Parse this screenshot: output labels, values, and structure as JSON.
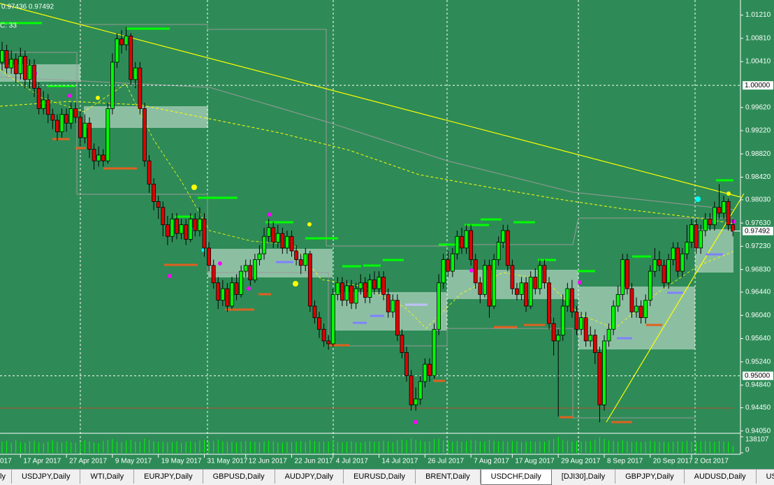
{
  "chart": {
    "type": "candlestick",
    "info": "0.97436 0.97492",
    "indicator_label": "C: 33",
    "ylim": [
      0.9401,
      1.0147
    ],
    "yticks": [
      {
        "value": 1.0121,
        "label": "1.01210"
      },
      {
        "value": 1.0081,
        "label": "1.00810"
      },
      {
        "value": 1.0041,
        "label": "1.00410"
      },
      {
        "value": 0.9962,
        "label": "0.99620"
      },
      {
        "value": 0.9922,
        "label": "0.99220"
      },
      {
        "value": 0.9882,
        "label": "0.98820"
      },
      {
        "value": 0.9842,
        "label": "0.98420"
      },
      {
        "value": 0.9803,
        "label": "0.98030"
      },
      {
        "value": 0.9763,
        "label": "0.97630"
      },
      {
        "value": 0.9723,
        "label": "0.97230"
      },
      {
        "value": 0.9683,
        "label": "0.96830"
      },
      {
        "value": 0.9644,
        "label": "0.96440"
      },
      {
        "value": 0.9604,
        "label": "0.96040"
      },
      {
        "value": 0.9564,
        "label": "0.95640"
      },
      {
        "value": 0.9524,
        "label": "0.95240"
      },
      {
        "value": 0.9484,
        "label": "0.94840"
      },
      {
        "value": 0.9445,
        "label": "0.94450"
      },
      {
        "value": 0.9405,
        "label": "0.94050"
      }
    ],
    "levels": [
      {
        "value": 1,
        "label": "1.00000"
      },
      {
        "value": 0.95,
        "label": "0.95000"
      }
    ],
    "price_label": {
      "value": 0.97492,
      "label": "0.97492"
    },
    "bull_color": "#00ff00",
    "bear_color": "#e00000",
    "candles": {
      "open": [
        1.004,
        1.006,
        1.003,
        1.0045,
        1.002,
        1.005,
        1.001,
        1.0035,
        0.9995,
        0.996,
        0.9975,
        0.995,
        0.994,
        0.992,
        0.995,
        0.9935,
        0.996,
        0.9945,
        0.991,
        0.9935,
        0.989,
        0.987,
        0.988,
        0.987,
        0.996,
        1.004,
        1.008,
        1.007,
        1.0085,
        1.001,
        1.003,
        0.996,
        0.987,
        0.983,
        0.98,
        0.979,
        0.976,
        0.974,
        0.977,
        0.9745,
        0.976,
        0.9735,
        0.977,
        0.975,
        0.977,
        0.972,
        0.969,
        0.966,
        0.963,
        0.965,
        0.962,
        0.966,
        0.964,
        0.968,
        0.969,
        0.9665,
        0.97,
        0.971,
        0.974,
        0.9755,
        0.973,
        0.9745,
        0.972,
        0.974,
        0.9715,
        0.97,
        0.969,
        0.971,
        0.962,
        0.96,
        0.958,
        0.956,
        0.9555,
        0.964,
        0.966,
        0.963,
        0.9655,
        0.9625,
        0.965,
        0.966,
        0.9635,
        0.9665,
        0.965,
        0.967,
        0.964,
        0.961,
        0.963,
        0.957,
        0.954,
        0.95,
        0.945,
        0.946,
        0.949,
        0.952,
        0.95,
        0.958,
        0.966,
        0.97,
        0.968,
        0.971,
        0.974,
        0.972,
        0.975,
        0.97,
        0.966,
        0.964,
        0.969,
        0.962,
        0.97,
        0.973,
        0.975,
        0.969,
        0.965,
        0.964,
        0.966,
        0.962,
        0.967,
        0.965,
        0.969,
        0.966,
        0.959,
        0.956,
        0.957,
        0.962,
        0.965,
        0.961,
        0.958,
        0.96,
        0.956,
        0.957,
        0.954,
        0.945,
        0.956,
        0.958,
        0.962,
        0.964,
        0.97,
        0.965,
        0.961,
        0.962,
        0.96,
        0.963,
        0.968,
        0.97,
        0.969,
        0.966,
        0.97,
        0.972,
        0.968,
        0.971,
        0.973,
        0.976,
        0.972,
        0.975,
        0.977,
        0.976,
        0.979,
        0.978,
        0.98,
        0.976
      ],
      "high": [
        1.0075,
        1.007,
        1.006,
        1.0055,
        1.0065,
        1.006,
        1.0045,
        1.0045,
        1.0005,
        0.999,
        0.9985,
        0.996,
        0.995,
        0.996,
        0.996,
        0.997,
        0.997,
        0.9955,
        0.995,
        0.9945,
        0.99,
        0.9895,
        0.989,
        0.997,
        1.0055,
        1.009,
        1.0095,
        1.01,
        1.009,
        1.004,
        1.004,
        0.997,
        0.988,
        0.984,
        0.981,
        0.98,
        0.9775,
        0.978,
        0.978,
        0.977,
        0.977,
        0.978,
        0.978,
        0.979,
        0.978,
        0.973,
        0.97,
        0.967,
        0.9665,
        0.966,
        0.967,
        0.9675,
        0.969,
        0.97,
        0.97,
        0.971,
        0.9725,
        0.9755,
        0.977,
        0.9765,
        0.976,
        0.9755,
        0.975,
        0.975,
        0.9725,
        0.971,
        0.972,
        0.9715,
        0.963,
        0.961,
        0.959,
        0.957,
        0.965,
        0.967,
        0.967,
        0.9665,
        0.9665,
        0.966,
        0.9675,
        0.967,
        0.9675,
        0.968,
        0.968,
        0.968,
        0.965,
        0.964,
        0.964,
        0.958,
        0.955,
        0.951,
        0.948,
        0.95,
        0.953,
        0.953,
        0.959,
        0.9675,
        0.971,
        0.9715,
        0.972,
        0.975,
        0.9755,
        0.976,
        0.976,
        0.971,
        0.967,
        0.97,
        0.97,
        0.971,
        0.974,
        0.976,
        0.976,
        0.97,
        0.966,
        0.967,
        0.967,
        0.968,
        0.9685,
        0.97,
        0.97,
        0.967,
        0.96,
        0.958,
        0.964,
        0.966,
        0.9665,
        0.962,
        0.961,
        0.961,
        0.9585,
        0.958,
        0.955,
        0.957,
        0.959,
        0.963,
        0.9655,
        0.971,
        0.971,
        0.966,
        0.9635,
        0.963,
        0.964,
        0.969,
        0.972,
        0.9715,
        0.97,
        0.971,
        0.973,
        0.973,
        0.972,
        0.976,
        0.977,
        0.977,
        0.976,
        0.978,
        0.978,
        0.98,
        0.983,
        0.981,
        0.9805,
        0.977
      ],
      "low": [
        1.0025,
        1.002,
        1.002,
        1.0005,
        1.001,
        0.9995,
        0.9995,
        0.998,
        0.995,
        0.995,
        0.9935,
        0.9925,
        0.9905,
        0.991,
        0.992,
        0.9925,
        0.9935,
        0.9895,
        0.99,
        0.9875,
        0.9855,
        0.986,
        0.986,
        0.9865,
        0.995,
        1.003,
        1.0055,
        1.006,
        1.0,
        0.9995,
        0.995,
        0.986,
        0.9815,
        0.9785,
        0.977,
        0.974,
        0.9725,
        0.973,
        0.9735,
        0.9735,
        0.9725,
        0.973,
        0.974,
        0.974,
        0.9705,
        0.968,
        0.965,
        0.9615,
        0.962,
        0.961,
        0.9615,
        0.963,
        0.9635,
        0.967,
        0.9655,
        0.966,
        0.969,
        0.97,
        0.973,
        0.972,
        0.972,
        0.971,
        0.971,
        0.9705,
        0.969,
        0.9675,
        0.968,
        0.961,
        0.959,
        0.9565,
        0.955,
        0.9545,
        0.955,
        0.963,
        0.962,
        0.962,
        0.9615,
        0.9615,
        0.964,
        0.9625,
        0.9625,
        0.964,
        0.964,
        0.963,
        0.96,
        0.96,
        0.956,
        0.953,
        0.949,
        0.944,
        0.944,
        0.945,
        0.948,
        0.949,
        0.9495,
        0.957,
        0.965,
        0.967,
        0.967,
        0.97,
        0.971,
        0.971,
        0.969,
        0.965,
        0.9625,
        0.9635,
        0.96,
        0.9615,
        0.969,
        0.972,
        0.968,
        0.964,
        0.963,
        0.963,
        0.961,
        0.9615,
        0.964,
        0.964,
        0.965,
        0.958,
        0.9535,
        0.943,
        0.956,
        0.961,
        0.96,
        0.957,
        0.957,
        0.955,
        0.955,
        0.952,
        0.942,
        0.944,
        0.955,
        0.957,
        0.961,
        0.963,
        0.964,
        0.96,
        0.96,
        0.959,
        0.959,
        0.962,
        0.967,
        0.968,
        0.965,
        0.965,
        0.969,
        0.967,
        0.967,
        0.97,
        0.972,
        0.971,
        0.971,
        0.974,
        0.975,
        0.975,
        0.977,
        0.977,
        0.975,
        0.974
      ],
      "close": [
        1.006,
        1.003,
        1.0045,
        1.002,
        1.005,
        1.001,
        1.0035,
        0.9995,
        0.996,
        0.9975,
        0.995,
        0.994,
        0.992,
        0.995,
        0.9935,
        0.996,
        0.9945,
        0.991,
        0.9935,
        0.989,
        0.987,
        0.988,
        0.987,
        0.996,
        1.004,
        1.008,
        1.007,
        1.0085,
        1.001,
        1.003,
        0.996,
        0.987,
        0.983,
        0.98,
        0.979,
        0.976,
        0.974,
        0.977,
        0.9745,
        0.976,
        0.9735,
        0.977,
        0.975,
        0.977,
        0.972,
        0.969,
        0.966,
        0.963,
        0.965,
        0.962,
        0.966,
        0.964,
        0.968,
        0.969,
        0.9665,
        0.97,
        0.971,
        0.974,
        0.9755,
        0.973,
        0.9745,
        0.972,
        0.974,
        0.9715,
        0.97,
        0.969,
        0.971,
        0.962,
        0.96,
        0.958,
        0.956,
        0.9555,
        0.964,
        0.966,
        0.963,
        0.9655,
        0.9625,
        0.965,
        0.966,
        0.9635,
        0.9665,
        0.965,
        0.967,
        0.964,
        0.961,
        0.963,
        0.957,
        0.954,
        0.95,
        0.945,
        0.946,
        0.949,
        0.952,
        0.95,
        0.958,
        0.966,
        0.97,
        0.968,
        0.971,
        0.974,
        0.972,
        0.975,
        0.97,
        0.966,
        0.964,
        0.969,
        0.962,
        0.97,
        0.973,
        0.975,
        0.969,
        0.965,
        0.964,
        0.966,
        0.962,
        0.967,
        0.965,
        0.969,
        0.966,
        0.959,
        0.956,
        0.957,
        0.962,
        0.965,
        0.961,
        0.958,
        0.96,
        0.956,
        0.957,
        0.954,
        0.945,
        0.956,
        0.958,
        0.962,
        0.964,
        0.97,
        0.965,
        0.961,
        0.962,
        0.96,
        0.963,
        0.968,
        0.97,
        0.969,
        0.966,
        0.97,
        0.972,
        0.968,
        0.971,
        0.973,
        0.976,
        0.972,
        0.975,
        0.977,
        0.976,
        0.979,
        0.978,
        0.98,
        0.976,
        0.9749
      ]
    },
    "volume": {
      "ylim": [
        0,
        138107
      ],
      "yticks": [
        0,
        138107
      ],
      "color": "#00ff00",
      "values": [
        96000,
        102000,
        88000,
        110000,
        93000,
        87000,
        99000,
        104000,
        91000,
        85000,
        97000,
        108000,
        94000,
        89000,
        101000,
        92000,
        86000,
        95000,
        107000,
        99000,
        90000,
        84000,
        103000,
        112000,
        118000,
        97000,
        91000,
        106000,
        113000,
        98000,
        95000,
        122000,
        109000,
        101000,
        93000,
        96000,
        88000,
        92000,
        99000,
        87000,
        94000,
        100000,
        91000,
        105000,
        110000,
        97000,
        103000,
        115000,
        99000,
        92000,
        96000,
        89000,
        94000,
        101000,
        98000,
        93000,
        90000,
        97000,
        104000,
        99000,
        92000,
        88000,
        95000,
        91000,
        96000,
        102000,
        93000,
        108000,
        100000,
        94000,
        98000,
        96000,
        107000,
        93000,
        90000,
        95000,
        99000,
        92000,
        88000,
        97000,
        101000,
        94000,
        96000,
        103000,
        99000,
        91000,
        109000,
        114000,
        106000,
        124000,
        111000,
        104000,
        98000,
        95000,
        116000,
        120000,
        108000,
        101000,
        96000,
        102000,
        94000,
        99000,
        110000,
        106000,
        100000,
        97000,
        112000,
        104000,
        98000,
        101000,
        95000,
        103000,
        99000,
        92000,
        97000,
        100000,
        94000,
        98000,
        96000,
        108000,
        118000,
        138107,
        112000,
        104000,
        98000,
        101000,
        95000,
        99000,
        103000,
        110000,
        130000,
        119000,
        106000,
        101000,
        97000,
        108000,
        100000,
        95000,
        98000,
        93000,
        96000,
        104000,
        99000,
        94000,
        97000,
        92000,
        95000,
        100000,
        96000,
        103000,
        98000,
        94000,
        99000,
        102000,
        96000,
        93000,
        101000,
        97000,
        95000,
        60000
      ]
    },
    "cut_date_label": "017",
    "date_labels": [
      {
        "candle": 4,
        "label": "17 Apr 2017"
      },
      {
        "candle": 14,
        "label": "27 Apr 2017"
      },
      {
        "candle": 24,
        "label": "9 May 2017"
      },
      {
        "candle": 34,
        "label": "19 May 2017"
      },
      {
        "candle": 44,
        "label": "31 May 2017"
      },
      {
        "candle": 53,
        "label": "12 Jun 2017"
      },
      {
        "candle": 63,
        "label": "22 Jun 2017"
      },
      {
        "candle": 72,
        "label": "4 Jul 2017"
      },
      {
        "candle": 82,
        "label": "14 Jul 2017"
      },
      {
        "candle": 92,
        "label": "26 Jul 2017"
      },
      {
        "candle": 102,
        "label": "7 Aug 2017"
      },
      {
        "candle": 111,
        "label": "17 Aug 2017"
      },
      {
        "candle": 121,
        "label": "29 Aug 2017"
      },
      {
        "candle": 131,
        "label": "8 Sep 2017"
      },
      {
        "candle": 141,
        "label": "20 Sep 2017"
      },
      {
        "candle": 150,
        "label": "2 Oct 2017"
      }
    ]
  },
  "tabs": {
    "active": 8,
    "items": [
      "ly",
      "USDJPY,Daily",
      "WTI,Daily",
      "EURJPY,Daily",
      "GBPUSD,Daily",
      "AUDJPY,Daily",
      "EURUSD,Daily",
      "BRENT,Daily",
      "USDCHF,Daily",
      "[DJI30],Daily",
      "GBPJPY,Daily",
      "AUDUSD,Daily",
      "USDCAD,Daily"
    ]
  }
}
